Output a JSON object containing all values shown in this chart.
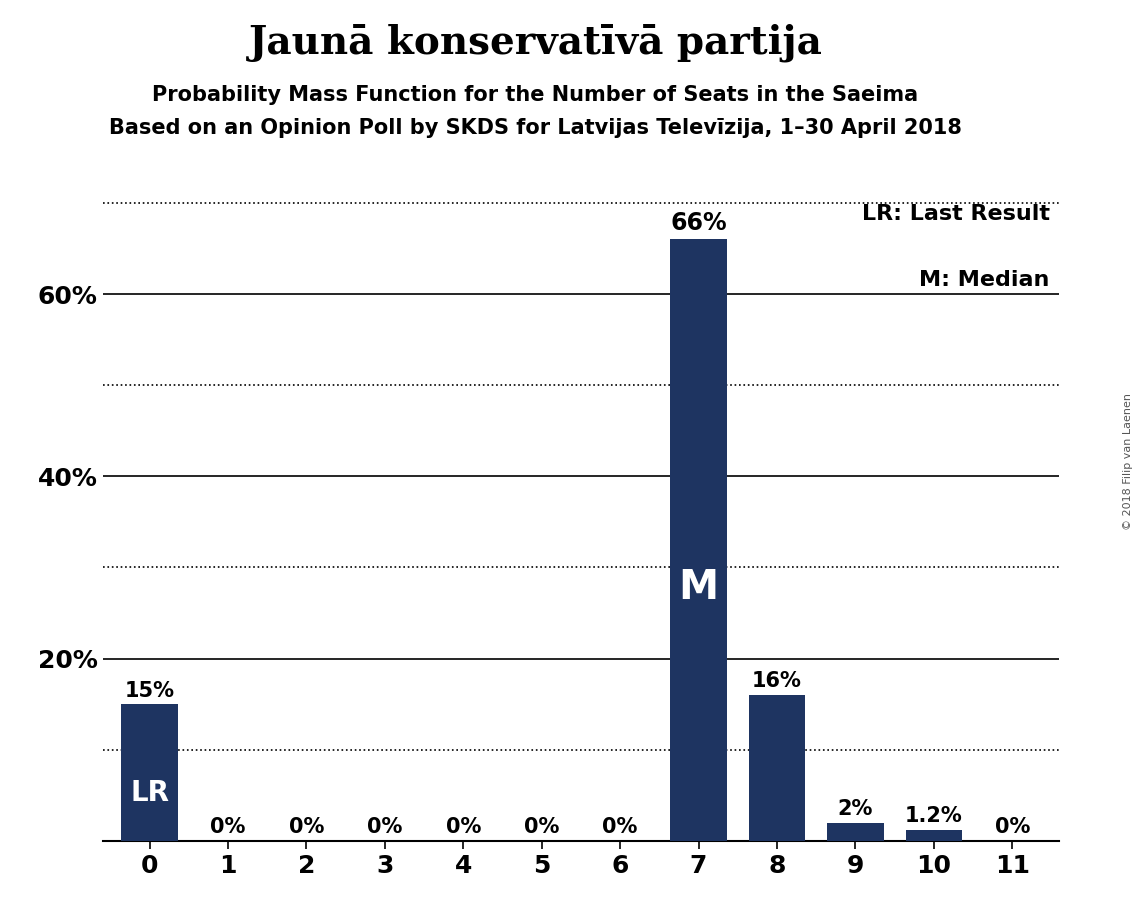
{
  "title": "Jaunā konservatīvā partija",
  "subtitle1": "Probability Mass Function for the Number of Seats in the Saeima",
  "subtitle2": "Based on an Opinion Poll by SKDS for Latvijas Televīzija, 1–30 April 2018",
  "copyright": "© 2018 Filip van Laenen",
  "categories": [
    0,
    1,
    2,
    3,
    4,
    5,
    6,
    7,
    8,
    9,
    10,
    11
  ],
  "values": [
    15,
    0,
    0,
    0,
    0,
    0,
    0,
    66,
    16,
    2,
    1.2,
    0
  ],
  "bar_color": "#1e3461",
  "lr_bar_idx": 0,
  "median_bar_idx": 7,
  "legend_lr": "LR: Last Result",
  "legend_m": "M: Median",
  "ylim": [
    0,
    72
  ],
  "ytick_positions": [
    20,
    40,
    60
  ],
  "ytick_labels": [
    "20%",
    "40%",
    "60%"
  ],
  "dotted_lines": [
    10,
    30,
    50,
    70
  ],
  "solid_lines": [
    20,
    40,
    60
  ],
  "background_color": "#ffffff",
  "title_fontsize": 28,
  "subtitle_fontsize": 15,
  "label_fontsize": 15,
  "tick_fontsize": 18,
  "legend_fontsize": 16,
  "copyright_fontsize": 8
}
